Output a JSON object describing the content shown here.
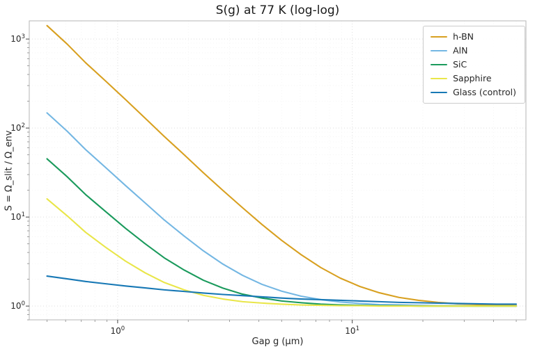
{
  "chart_data": {
    "type": "line",
    "title": "S(g) at 77 K (log-log)",
    "xlabel": "Gap g (μm)",
    "ylabel": "S = Ω_slit / Ω_env",
    "x_scale": "log",
    "y_scale": "log",
    "xlim": [
      0.42,
      55
    ],
    "ylim": [
      0.7,
      1600
    ],
    "grid": true,
    "legend_position": "upper right",
    "x": [
      0.5,
      0.61,
      0.73,
      0.89,
      1.08,
      1.31,
      1.58,
      1.92,
      2.32,
      2.81,
      3.41,
      4.13,
      5.0,
      6.06,
      7.34,
      8.89,
      10.77,
      13.05,
      15.81,
      19.16,
      23.21,
      28.12,
      34.07,
      41.28,
      50.0
    ],
    "series": [
      {
        "name": "h-BN",
        "color": "#d8a020",
        "values": [
          1415,
          875,
          542,
          336,
          209,
          129,
          80.5,
          50.2,
          31.4,
          19.9,
          12.7,
          8.22,
          5.47,
          3.77,
          2.71,
          2.06,
          1.66,
          1.41,
          1.25,
          1.16,
          1.1,
          1.06,
          1.04,
          1.02,
          1.01
        ]
      },
      {
        "name": "AlN",
        "color": "#74b7e3",
        "values": [
          148,
          91.9,
          57.3,
          35.9,
          22.6,
          14.4,
          9.27,
          6.12,
          4.17,
          2.96,
          2.21,
          1.75,
          1.47,
          1.29,
          1.18,
          1.11,
          1.07,
          1.04,
          1.03,
          1.02,
          1.01,
          1.01,
          1.0,
          1.0,
          1.0
        ]
      },
      {
        "name": "SiC",
        "color": "#1a9a5c",
        "values": [
          45.1,
          28.3,
          17.9,
          11.5,
          7.48,
          5.01,
          3.48,
          2.54,
          1.95,
          1.59,
          1.36,
          1.23,
          1.14,
          1.09,
          1.05,
          1.03,
          1.02,
          1.01,
          1.01,
          1.0,
          1.0,
          1.0,
          1.0,
          1.0,
          1.0
        ]
      },
      {
        "name": "Sapphire",
        "color": "#e9e649",
        "values": [
          16.0,
          10.3,
          6.74,
          4.56,
          3.2,
          2.36,
          1.84,
          1.52,
          1.32,
          1.2,
          1.12,
          1.08,
          1.05,
          1.03,
          1.02,
          1.01,
          1.01,
          1.0,
          1.0,
          1.0,
          1.0,
          1.0,
          1.0,
          1.0,
          1.0
        ]
      },
      {
        "name": "Glass (control)",
        "color": "#1778b5",
        "values": [
          2.17,
          2.02,
          1.89,
          1.78,
          1.68,
          1.6,
          1.52,
          1.46,
          1.4,
          1.35,
          1.31,
          1.27,
          1.23,
          1.2,
          1.18,
          1.16,
          1.14,
          1.12,
          1.1,
          1.09,
          1.08,
          1.07,
          1.06,
          1.05,
          1.05
        ]
      }
    ]
  }
}
